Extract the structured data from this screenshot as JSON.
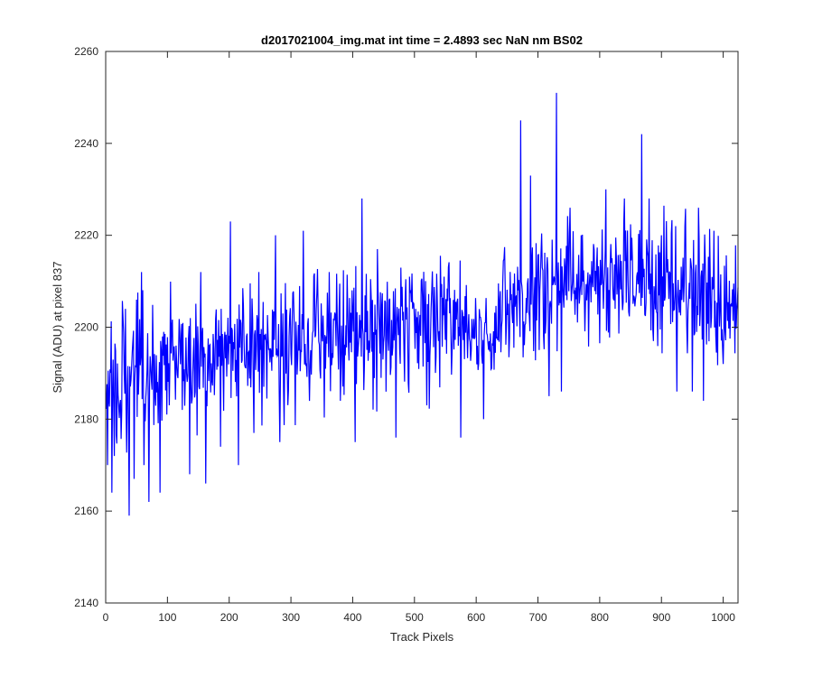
{
  "chart_data": {
    "type": "line",
    "title": "d2017021004_img.mat int time = 2.4893 sec  NaN nm BS02",
    "xlabel": "Track Pixels",
    "ylabel": "Signal (ADU) at pixel 837",
    "xlim": [
      0,
      1024
    ],
    "ylim": [
      2140,
      2260
    ],
    "xticks": [
      0,
      100,
      200,
      300,
      400,
      500,
      600,
      700,
      800,
      900,
      1000
    ],
    "yticks": [
      2140,
      2160,
      2180,
      2200,
      2220,
      2240,
      2260
    ],
    "grid": false,
    "line_color": "#0000ff",
    "series": [
      {
        "x_start": 1,
        "x_step": 1,
        "trend": [
          [
            0,
            2188
          ],
          [
            50,
            2190
          ],
          [
            100,
            2192
          ],
          [
            150,
            2193
          ],
          [
            200,
            2195
          ],
          [
            250,
            2196
          ],
          [
            300,
            2197
          ],
          [
            350,
            2198
          ],
          [
            400,
            2198
          ],
          [
            450,
            2199
          ],
          [
            500,
            2201
          ],
          [
            550,
            2202
          ],
          [
            600,
            2198
          ],
          [
            650,
            2203
          ],
          [
            700,
            2207
          ],
          [
            750,
            2210
          ],
          [
            800,
            2209
          ],
          [
            850,
            2211
          ],
          [
            900,
            2209
          ],
          [
            950,
            2206
          ],
          [
            1024,
            2205
          ]
        ],
        "noise_sd": 6.8,
        "ymin_observed": 2159,
        "ymax_observed": 2251,
        "spikes": [
          [
            3,
            2170
          ],
          [
            10,
            2164
          ],
          [
            14,
            2172
          ],
          [
            32,
            2204
          ],
          [
            38,
            2159
          ],
          [
            46,
            2167
          ],
          [
            50,
            2206
          ],
          [
            58,
            2212
          ],
          [
            62,
            2170
          ],
          [
            70,
            2162
          ],
          [
            88,
            2164
          ],
          [
            94,
            2199
          ],
          [
            99,
            2181
          ],
          [
            124,
            2182
          ],
          [
            136,
            2168
          ],
          [
            154,
            2212
          ],
          [
            162,
            2166
          ],
          [
            186,
            2174
          ],
          [
            202,
            2223
          ],
          [
            215,
            2170
          ],
          [
            240,
            2177
          ],
          [
            248,
            2212
          ],
          [
            275,
            2220
          ],
          [
            282,
            2175
          ],
          [
            320,
            2221
          ],
          [
            362,
            2212
          ],
          [
            380,
            2184
          ],
          [
            404,
            2175
          ],
          [
            415,
            2228
          ],
          [
            440,
            2217
          ],
          [
            470,
            2176
          ],
          [
            492,
            2211
          ],
          [
            520,
            2183
          ],
          [
            548,
            2211
          ],
          [
            575,
            2176
          ],
          [
            612,
            2180
          ],
          [
            668,
            2208
          ],
          [
            672,
            2245
          ],
          [
            688,
            2233
          ],
          [
            705,
            2216
          ],
          [
            718,
            2185
          ],
          [
            730,
            2251
          ],
          [
            738,
            2186
          ],
          [
            752,
            2226
          ],
          [
            770,
            2220
          ],
          [
            810,
            2230
          ],
          [
            840,
            2228
          ],
          [
            868,
            2242
          ],
          [
            880,
            2228
          ],
          [
            900,
            2220
          ],
          [
            925,
            2186
          ],
          [
            938,
            2222
          ],
          [
            950,
            2186
          ],
          [
            960,
            2226
          ],
          [
            968,
            2184
          ],
          [
            985,
            2221
          ],
          [
            1000,
            2192
          ]
        ]
      }
    ]
  }
}
